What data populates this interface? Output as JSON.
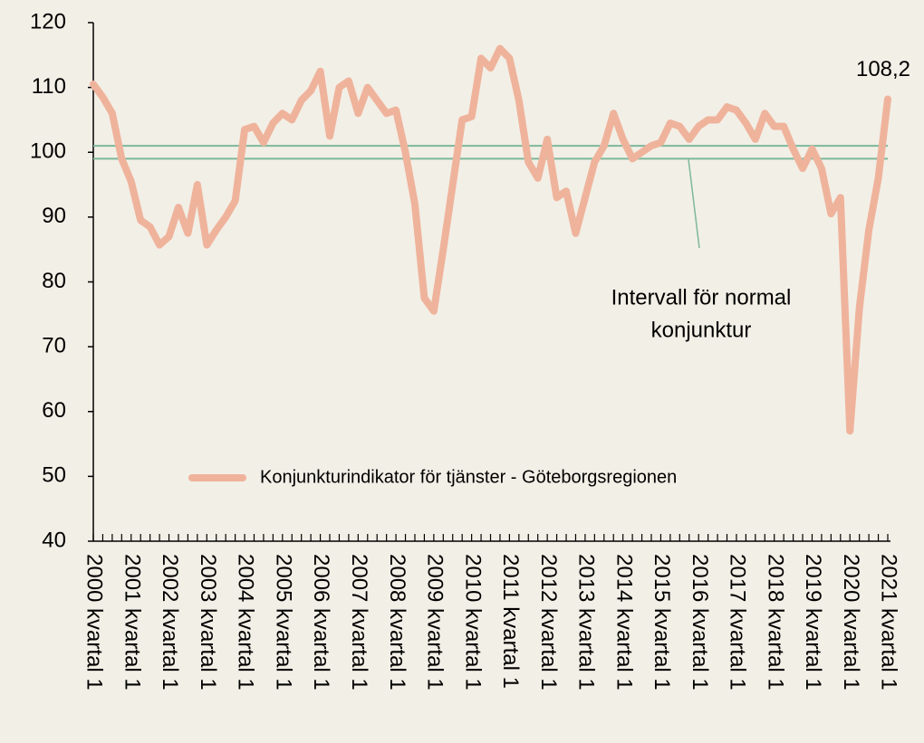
{
  "chart_data": {
    "type": "line",
    "categories": [
      "2000 kvartal 1",
      null,
      null,
      null,
      "2001 kvartal 1",
      null,
      null,
      null,
      "2002 kvartal 1",
      null,
      null,
      null,
      "2003 kvartal 1",
      null,
      null,
      null,
      "2004 kvartal 1",
      null,
      null,
      null,
      "2005 kvartal 1",
      null,
      null,
      null,
      "2006 kvartal 1",
      null,
      null,
      null,
      "2007 kvartal 1",
      null,
      null,
      null,
      "2008 kvartal 1",
      null,
      null,
      null,
      "2009 kvartal 1",
      null,
      null,
      null,
      "2010 kvartal 1",
      null,
      null,
      null,
      "2011 kvartal 1",
      null,
      null,
      null,
      "2012 kvartal 1",
      null,
      null,
      null,
      "2013 kvartal 1",
      null,
      null,
      null,
      "2014 kvartal 1",
      null,
      null,
      null,
      "2015 kvartal 1",
      null,
      null,
      null,
      "2016 kvartal 1",
      null,
      null,
      null,
      "2017 kvartal 1",
      null,
      null,
      null,
      "2018 kvartal 1",
      null,
      null,
      null,
      "2019 kvartal 1",
      null,
      null,
      null,
      "2020 kvartal 1",
      null,
      null,
      null,
      "2021 kvartal 1"
    ],
    "series": [
      {
        "name": "Konjunkturindikator för tjänster - Göteborgsregionen",
        "color": "#efb39c",
        "values": [
          110.5,
          108.5,
          106,
          99,
          95.5,
          89.5,
          88.5,
          85.7,
          87,
          91.5,
          87.5,
          95,
          85.7,
          88,
          90,
          92.5,
          103.5,
          104,
          101.5,
          104.5,
          106,
          105,
          108,
          109.5,
          112.5,
          102.5,
          110,
          111,
          106,
          110,
          108,
          106,
          106.5,
          100,
          92,
          77.5,
          75.5,
          85,
          95,
          105,
          105.5,
          114.5,
          113,
          116,
          114.5,
          108,
          98.5,
          96,
          102,
          93,
          94,
          87.5,
          93,
          98.5,
          101,
          106,
          102,
          99,
          100,
          101,
          101.5,
          104.5,
          104,
          102,
          104,
          105,
          105,
          107,
          106.5,
          104.5,
          102,
          106,
          104,
          104,
          100.5,
          97.5,
          100.5,
          97.5,
          90.5,
          93,
          57,
          76,
          88,
          96,
          108.2
        ],
        "value_labels": [
          null,
          null,
          null,
          null,
          null,
          null,
          null,
          null,
          null,
          null,
          null,
          null,
          null,
          null,
          null,
          null,
          null,
          null,
          null,
          null,
          null,
          null,
          null,
          null,
          null,
          null,
          null,
          null,
          null,
          null,
          null,
          null,
          null,
          null,
          null,
          null,
          null,
          null,
          null,
          null,
          null,
          null,
          null,
          null,
          null,
          null,
          null,
          null,
          null,
          null,
          null,
          null,
          null,
          null,
          null,
          null,
          null,
          null,
          null,
          null,
          null,
          null,
          null,
          null,
          null,
          null,
          null,
          null,
          null,
          null,
          null,
          null,
          null,
          null,
          null,
          null,
          null,
          null,
          null,
          null,
          null,
          null,
          null,
          null,
          "108,2"
        ]
      }
    ],
    "reference_lines": [
      {
        "value": 101
      },
      {
        "value": 99
      }
    ],
    "reference_color": "#7db89b",
    "annotation": [
      "Intervall för normal",
      "konjunktur"
    ],
    "ylim": [
      40,
      120
    ],
    "yticks": [
      40,
      50,
      60,
      70,
      80,
      90,
      100,
      110,
      120
    ]
  }
}
